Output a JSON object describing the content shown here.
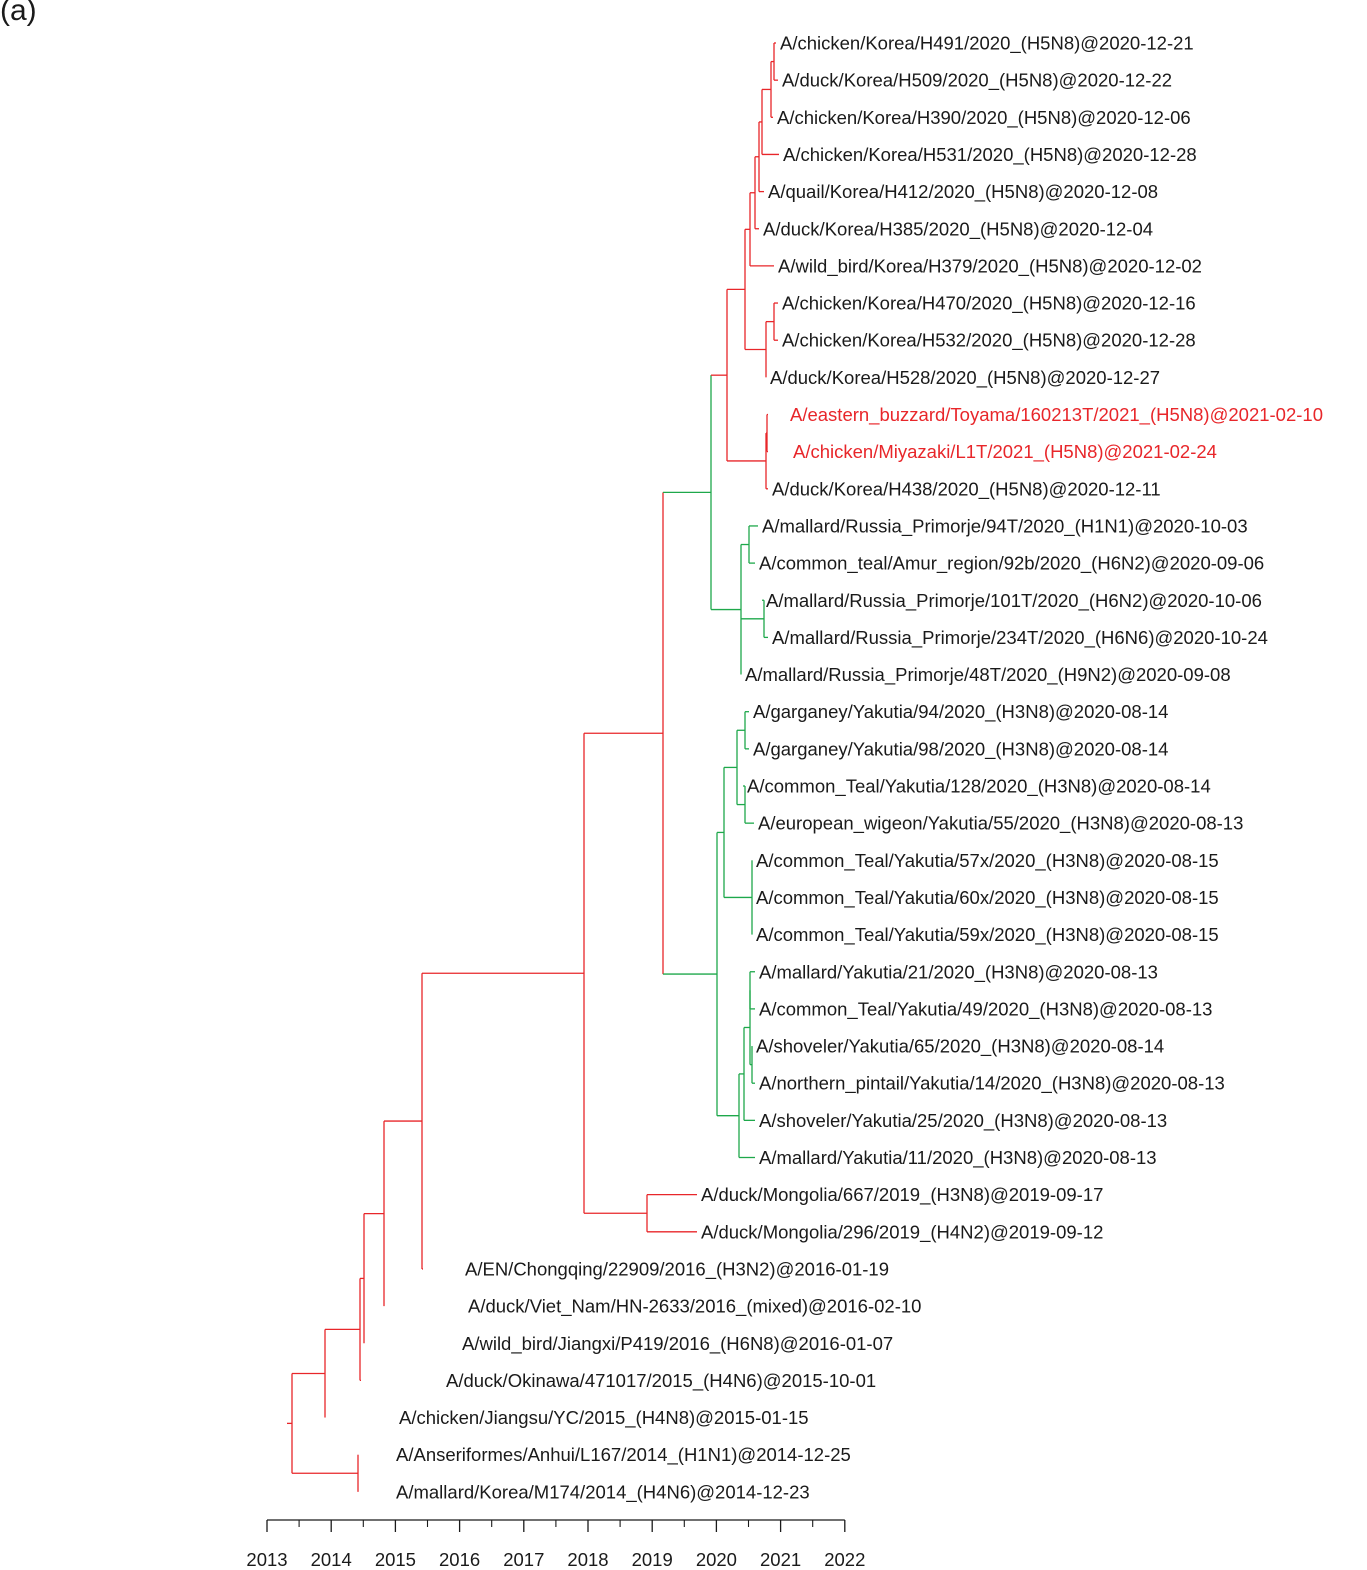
{
  "panel_label": "(a)",
  "colors": {
    "red": "#e8262a",
    "green": "#1ea84b",
    "black": "#1a1a1a"
  },
  "axis": {
    "ticks": [
      "2013",
      "2014",
      "2015",
      "2016",
      "2017",
      "2018",
      "2019",
      "2020",
      "2021",
      "2022"
    ]
  },
  "leaves": [
    {
      "label": "A/chicken/Korea/H491/2020_(H5N8)@2020-12-21",
      "highlight": false
    },
    {
      "label": "A/duck/Korea/H509/2020_(H5N8)@2020-12-22",
      "highlight": false
    },
    {
      "label": "A/chicken/Korea/H390/2020_(H5N8)@2020-12-06",
      "highlight": false
    },
    {
      "label": "A/chicken/Korea/H531/2020_(H5N8)@2020-12-28",
      "highlight": false
    },
    {
      "label": "A/quail/Korea/H412/2020_(H5N8)@2020-12-08",
      "highlight": false
    },
    {
      "label": "A/duck/Korea/H385/2020_(H5N8)@2020-12-04",
      "highlight": false
    },
    {
      "label": "A/wild_bird/Korea/H379/2020_(H5N8)@2020-12-02",
      "highlight": false
    },
    {
      "label": "A/chicken/Korea/H470/2020_(H5N8)@2020-12-16",
      "highlight": false
    },
    {
      "label": "A/chicken/Korea/H532/2020_(H5N8)@2020-12-28",
      "highlight": false
    },
    {
      "label": "A/duck/Korea/H528/2020_(H5N8)@2020-12-27",
      "highlight": false
    },
    {
      "label": "A/eastern_buzzard/Toyama/160213T/2021_(H5N8)@2021-02-10",
      "highlight": true
    },
    {
      "label": "A/chicken/Miyazaki/L1T/2021_(H5N8)@2021-02-24",
      "highlight": true
    },
    {
      "label": "A/duck/Korea/H438/2020_(H5N8)@2020-12-11",
      "highlight": false
    },
    {
      "label": "A/mallard/Russia_Primorje/94T/2020_(H1N1)@2020-10-03",
      "highlight": false
    },
    {
      "label": "A/common_teal/Amur_region/92b/2020_(H6N2)@2020-09-06",
      "highlight": false
    },
    {
      "label": "A/mallard/Russia_Primorje/101T/2020_(H6N2)@2020-10-06",
      "highlight": false
    },
    {
      "label": "A/mallard/Russia_Primorje/234T/2020_(H6N6)@2020-10-24",
      "highlight": false
    },
    {
      "label": "A/mallard/Russia_Primorje/48T/2020_(H9N2)@2020-09-08",
      "highlight": false
    },
    {
      "label": "A/garganey/Yakutia/94/2020_(H3N8)@2020-08-14",
      "highlight": false
    },
    {
      "label": "A/garganey/Yakutia/98/2020_(H3N8)@2020-08-14",
      "highlight": false
    },
    {
      "label": "A/common_Teal/Yakutia/128/2020_(H3N8)@2020-08-14",
      "highlight": false
    },
    {
      "label": "A/european_wigeon/Yakutia/55/2020_(H3N8)@2020-08-13",
      "highlight": false
    },
    {
      "label": "A/common_Teal/Yakutia/57x/2020_(H3N8)@2020-08-15",
      "highlight": false
    },
    {
      "label": "A/common_Teal/Yakutia/60x/2020_(H3N8)@2020-08-15",
      "highlight": false
    },
    {
      "label": "A/common_Teal/Yakutia/59x/2020_(H3N8)@2020-08-15",
      "highlight": false
    },
    {
      "label": "A/mallard/Yakutia/21/2020_(H3N8)@2020-08-13",
      "highlight": false
    },
    {
      "label": "A/common_Teal/Yakutia/49/2020_(H3N8)@2020-08-13",
      "highlight": false
    },
    {
      "label": "A/shoveler/Yakutia/65/2020_(H3N8)@2020-08-14",
      "highlight": false
    },
    {
      "label": "A/northern_pintail/Yakutia/14/2020_(H3N8)@2020-08-13",
      "highlight": false
    },
    {
      "label": "A/shoveler/Yakutia/25/2020_(H3N8)@2020-08-13",
      "highlight": false
    },
    {
      "label": "A/mallard/Yakutia/11/2020_(H3N8)@2020-08-13",
      "highlight": false
    },
    {
      "label": "A/duck/Mongolia/667/2019_(H3N8)@2019-09-17",
      "highlight": false
    },
    {
      "label": "A/duck/Mongolia/296/2019_(H4N2)@2019-09-12",
      "highlight": false
    },
    {
      "label": "A/EN/Chongqing/22909/2016_(H3N2)@2016-01-19",
      "highlight": false
    },
    {
      "label": "A/duck/Viet_Nam/HN-2633/2016_(mixed)@2016-02-10",
      "highlight": false
    },
    {
      "label": "A/wild_bird/Jiangxi/P419/2016_(H6N8)@2016-01-07",
      "highlight": false
    },
    {
      "label": "A/duck/Okinawa/471017/2015_(H4N6)@2015-10-01",
      "highlight": false
    },
    {
      "label": "A/chicken/Jiangsu/YC/2015_(H4N8)@2015-01-15",
      "highlight": false
    },
    {
      "label": "A/Anseriformes/Anhui/L167/2014_(H1N1)@2014-12-25",
      "highlight": false
    },
    {
      "label": "A/mallard/Korea/M174/2014_(H4N6)@2014-12-23",
      "highlight": false
    }
  ]
}
